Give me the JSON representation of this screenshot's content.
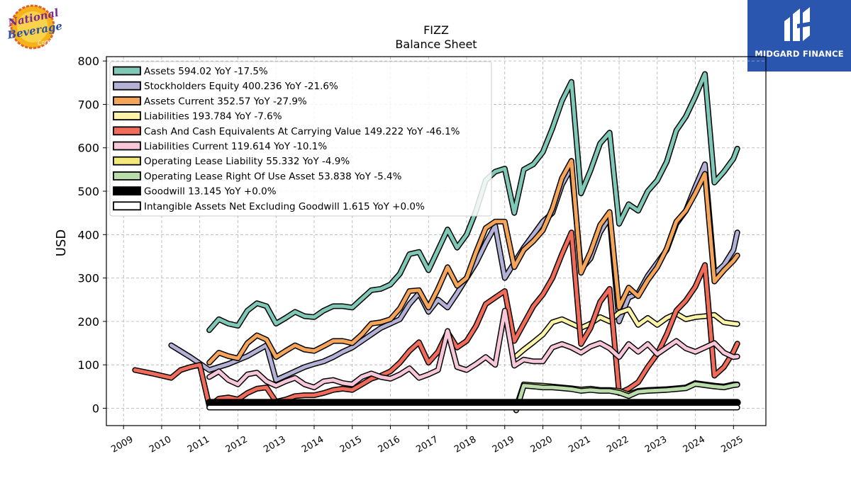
{
  "logos": {
    "left_text": [
      "National",
      "Beverage",
      "Corp."
    ],
    "right_text": "MIDGARD FINANCE"
  },
  "chart_data": {
    "type": "line",
    "ticker": "FIZZ",
    "title": "Balance  Sheet",
    "xlabel": "",
    "ylabel": "USD",
    "ylim": [
      -40,
      810
    ],
    "xlim": [
      2008.55,
      2025.85
    ],
    "yticks": [
      0,
      100,
      200,
      300,
      400,
      500,
      600,
      700,
      800
    ],
    "xticks": [
      "2009",
      "2010",
      "2011",
      "2012",
      "2013",
      "2014",
      "2015",
      "2016",
      "2017",
      "2018",
      "2019",
      "2020",
      "2021",
      "2022",
      "2023",
      "2024",
      "2025"
    ],
    "grid": true,
    "legend_position": "top-left",
    "series": [
      {
        "name": "Assets",
        "legend": "Assets  594.02 YoY -17.5%",
        "color": "#7fc8b8",
        "width": 5,
        "x": [
          2011.25,
          2011.5,
          2011.75,
          2012.0,
          2012.25,
          2012.5,
          2012.75,
          2013.0,
          2013.25,
          2013.5,
          2013.75,
          2014.0,
          2014.25,
          2014.5,
          2014.75,
          2015.0,
          2015.25,
          2015.5,
          2015.75,
          2016.0,
          2016.25,
          2016.5,
          2016.75,
          2017.0,
          2017.25,
          2017.5,
          2017.75,
          2018.0,
          2018.25,
          2018.5,
          2018.75,
          2019.0,
          2019.25,
          2019.5,
          2019.75,
          2020.0,
          2020.25,
          2020.5,
          2020.75,
          2021.0,
          2021.25,
          2021.5,
          2021.75,
          2022.0,
          2022.25,
          2022.5,
          2022.75,
          2023.0,
          2023.25,
          2023.5,
          2023.75,
          2024.0,
          2024.25,
          2024.5,
          2024.75,
          2025.0,
          2025.1
        ],
        "y": [
          180,
          205,
          195,
          190,
          225,
          242,
          235,
          195,
          208,
          222,
          212,
          210,
          225,
          235,
          235,
          232,
          252,
          272,
          275,
          285,
          310,
          355,
          360,
          318,
          365,
          412,
          370,
          400,
          455,
          525,
          545,
          552,
          450,
          550,
          562,
          590,
          645,
          708,
          752,
          495,
          548,
          610,
          635,
          425,
          470,
          455,
          500,
          525,
          568,
          640,
          672,
          718,
          770,
          520,
          545,
          575,
          598
        ]
      },
      {
        "name": "Stockholders Equity",
        "legend": "Stockholders Equity  400.236 YoY -21.6%",
        "color": "#b3b1d6",
        "width": 5,
        "x": [
          2010.25,
          2010.75,
          2011.25,
          2011.75,
          2012.25,
          2012.75,
          2013.0,
          2013.25,
          2013.5,
          2013.75,
          2014.0,
          2014.25,
          2014.5,
          2014.75,
          2015.0,
          2015.25,
          2015.5,
          2015.75,
          2016.0,
          2016.25,
          2016.5,
          2016.75,
          2017.0,
          2017.25,
          2017.5,
          2017.75,
          2018.0,
          2018.25,
          2018.5,
          2018.75,
          2019.0,
          2019.25,
          2019.5,
          2019.75,
          2020.0,
          2020.25,
          2020.5,
          2020.75,
          2021.0,
          2021.25,
          2021.5,
          2021.75,
          2022.0,
          2022.25,
          2022.5,
          2022.75,
          2023.0,
          2023.25,
          2023.5,
          2023.75,
          2024.0,
          2024.25,
          2024.5,
          2024.75,
          2025.0,
          2025.1
        ],
        "y": [
          145,
          118,
          88,
          102,
          120,
          145,
          65,
          75,
          85,
          95,
          102,
          108,
          118,
          130,
          140,
          155,
          170,
          185,
          195,
          205,
          240,
          265,
          222,
          250,
          232,
          265,
          300,
          335,
          380,
          420,
          300,
          335,
          370,
          400,
          430,
          450,
          515,
          555,
          320,
          345,
          405,
          440,
          200,
          255,
          265,
          305,
          335,
          365,
          425,
          455,
          510,
          562,
          310,
          330,
          365,
          405
        ]
      },
      {
        "name": "Assets Current",
        "legend": "Assets Current  352.57 YoY -27.9%",
        "color": "#f5a55a",
        "width": 5,
        "x": [
          2011.25,
          2011.5,
          2011.75,
          2012.0,
          2012.25,
          2012.5,
          2012.75,
          2013.0,
          2013.25,
          2013.5,
          2013.75,
          2014.0,
          2014.25,
          2014.5,
          2014.75,
          2015.0,
          2015.25,
          2015.5,
          2015.75,
          2016.0,
          2016.25,
          2016.5,
          2016.75,
          2017.0,
          2017.25,
          2017.5,
          2017.75,
          2018.0,
          2018.25,
          2018.5,
          2018.75,
          2019.0,
          2019.25,
          2019.5,
          2019.75,
          2020.0,
          2020.25,
          2020.5,
          2020.75,
          2021.0,
          2021.25,
          2021.5,
          2021.75,
          2022.0,
          2022.25,
          2022.5,
          2022.75,
          2023.0,
          2023.25,
          2023.5,
          2023.75,
          2024.0,
          2024.25,
          2024.5,
          2024.75,
          2025.0,
          2025.1
        ],
        "y": [
          105,
          128,
          120,
          115,
          150,
          168,
          158,
          118,
          132,
          145,
          135,
          132,
          143,
          155,
          155,
          150,
          170,
          195,
          198,
          205,
          230,
          270,
          272,
          232,
          275,
          325,
          282,
          300,
          360,
          415,
          430,
          430,
          325,
          365,
          385,
          410,
          460,
          530,
          570,
          312,
          360,
          422,
          452,
          232,
          278,
          258,
          295,
          325,
          368,
          430,
          455,
          495,
          540,
          292,
          318,
          340,
          352
        ]
      },
      {
        "name": "Liabilities",
        "legend": "Liabilities  193.784 YoY -7.6%",
        "color": "#fbf3a8",
        "width": 5,
        "x": [
          2019.3,
          2019.5,
          2019.75,
          2020.0,
          2020.25,
          2020.5,
          2020.75,
          2021.0,
          2021.25,
          2021.5,
          2021.75,
          2022.0,
          2022.25,
          2022.5,
          2022.75,
          2023.0,
          2023.25,
          2023.5,
          2023.75,
          2024.0,
          2024.25,
          2024.5,
          2024.75,
          2025.0,
          2025.1
        ],
        "y": [
          120,
          135,
          152,
          170,
          198,
          205,
          195,
          185,
          195,
          210,
          200,
          220,
          228,
          192,
          208,
          192,
          208,
          218,
          205,
          210,
          212,
          215,
          198,
          195,
          194
        ]
      },
      {
        "name": "Cash And Cash Equivalents At Carrying Value",
        "legend": "Cash And Cash Equivalents At Carrying Value  149.222 YoY -46.1%",
        "color": "#f06b5a",
        "width": 5,
        "x": [
          2009.3,
          2009.75,
          2010.25,
          2010.5,
          2010.75,
          2011.0,
          2011.25,
          2011.5,
          2011.75,
          2012.0,
          2012.25,
          2012.5,
          2012.75,
          2013.0,
          2013.25,
          2013.5,
          2013.75,
          2014.0,
          2014.25,
          2014.5,
          2014.75,
          2015.0,
          2015.25,
          2015.5,
          2015.75,
          2016.0,
          2016.25,
          2016.5,
          2016.75,
          2017.0,
          2017.25,
          2017.5,
          2017.75,
          2018.0,
          2018.25,
          2018.5,
          2018.75,
          2019.0,
          2019.25,
          2019.5,
          2019.75,
          2020.0,
          2020.25,
          2020.5,
          2020.75,
          2021.0,
          2021.25,
          2021.5,
          2021.75,
          2022.0,
          2022.25,
          2022.5,
          2022.75,
          2023.0,
          2023.25,
          2023.5,
          2023.75,
          2024.0,
          2024.25,
          2024.5,
          2024.75,
          2025.0,
          2025.1
        ],
        "y": [
          88,
          80,
          70,
          88,
          95,
          100,
          5,
          22,
          25,
          20,
          35,
          45,
          48,
          15,
          20,
          28,
          30,
          30,
          35,
          42,
          45,
          42,
          55,
          68,
          75,
          85,
          105,
          132,
          152,
          105,
          130,
          175,
          140,
          155,
          190,
          240,
          255,
          270,
          155,
          195,
          235,
          262,
          300,
          355,
          405,
          148,
          185,
          245,
          275,
          35,
          45,
          60,
          95,
          125,
          170,
          225,
          248,
          280,
          330,
          75,
          95,
          130,
          149
        ]
      },
      {
        "name": "Liabilities Current",
        "legend": "Liabilities Current  119.614 YoY -10.1%",
        "color": "#f7c6d8",
        "width": 5,
        "x": [
          2011.25,
          2011.5,
          2011.75,
          2012.0,
          2012.25,
          2012.5,
          2012.75,
          2013.0,
          2013.25,
          2013.5,
          2013.75,
          2014.0,
          2014.25,
          2014.5,
          2014.75,
          2015.0,
          2015.25,
          2015.5,
          2015.75,
          2016.0,
          2016.25,
          2016.5,
          2016.75,
          2017.0,
          2017.25,
          2017.5,
          2017.75,
          2018.0,
          2018.25,
          2018.5,
          2018.75,
          2019.0,
          2019.25,
          2019.5,
          2019.75,
          2020.0,
          2020.25,
          2020.5,
          2020.75,
          2021.0,
          2021.25,
          2021.5,
          2021.75,
          2022.0,
          2022.25,
          2022.5,
          2022.75,
          2023.0,
          2023.25,
          2023.5,
          2023.75,
          2024.0,
          2024.25,
          2024.5,
          2024.75,
          2025.0,
          2025.1
        ],
        "y": [
          72,
          85,
          65,
          55,
          78,
          82,
          62,
          52,
          62,
          70,
          55,
          48,
          62,
          65,
          58,
          55,
          72,
          80,
          72,
          68,
          78,
          92,
          70,
          78,
          88,
          178,
          95,
          88,
          102,
          118,
          100,
          225,
          98,
          112,
          108,
          108,
          140,
          148,
          140,
          128,
          142,
          150,
          138,
          118,
          148,
          130,
          148,
          125,
          140,
          155,
          138,
          130,
          140,
          150,
          128,
          118,
          119
        ]
      },
      {
        "name": "Operating Lease Liability",
        "legend": "Operating Lease Liability  55.332 YoY -4.9%",
        "color": "#f2e87a",
        "width": 5,
        "x": [
          2019.3,
          2019.5,
          2019.75,
          2020.0,
          2020.25,
          2020.5,
          2020.75,
          2021.0,
          2021.25,
          2021.5,
          2021.75,
          2022.0,
          2022.25,
          2022.5,
          2022.75,
          2023.0,
          2023.25,
          2023.5,
          2023.75,
          2024.0,
          2024.25,
          2024.5,
          2024.75,
          2025.0,
          2025.1
        ],
        "y": [
          2,
          55,
          53,
          52,
          50,
          48,
          46,
          43,
          45,
          42,
          42,
          40,
          32,
          40,
          42,
          43,
          44,
          46,
          48,
          58,
          55,
          52,
          50,
          55,
          55
        ]
      },
      {
        "name": "Operating Lease Right Of Use Asset",
        "legend": "Operating Lease Right Of Use Asset  53.838 YoY -5.4%",
        "color": "#b9dcaa",
        "width": 5,
        "x": [
          2019.3,
          2019.5,
          2019.75,
          2020.0,
          2020.25,
          2020.5,
          2020.75,
          2021.0,
          2021.25,
          2021.5,
          2021.75,
          2022.0,
          2022.25,
          2022.5,
          2022.75,
          2023.0,
          2023.25,
          2023.5,
          2023.75,
          2024.0,
          2024.25,
          2024.5,
          2024.75,
          2025.0,
          2025.1
        ],
        "y": [
          -5,
          52,
          50,
          48,
          48,
          46,
          44,
          40,
          42,
          40,
          40,
          36,
          28,
          38,
          40,
          41,
          42,
          44,
          46,
          56,
          53,
          50,
          48,
          53,
          54
        ]
      },
      {
        "name": "Goodwill",
        "legend": "Goodwill  13.145 YoY +0.0%",
        "color": "#000000",
        "width": 7,
        "x": [
          2011.25,
          2025.1
        ],
        "y": [
          13.145,
          13.145
        ]
      },
      {
        "name": "Intangible Assets Net Excluding Goodwill",
        "legend": "Intangible Assets Net Excluding Goodwill  1.615 YoY +0.0%",
        "color": "#ffffff",
        "width": 5,
        "x": [
          2011.25,
          2025.1
        ],
        "y": [
          1.615,
          1.615
        ]
      }
    ]
  }
}
